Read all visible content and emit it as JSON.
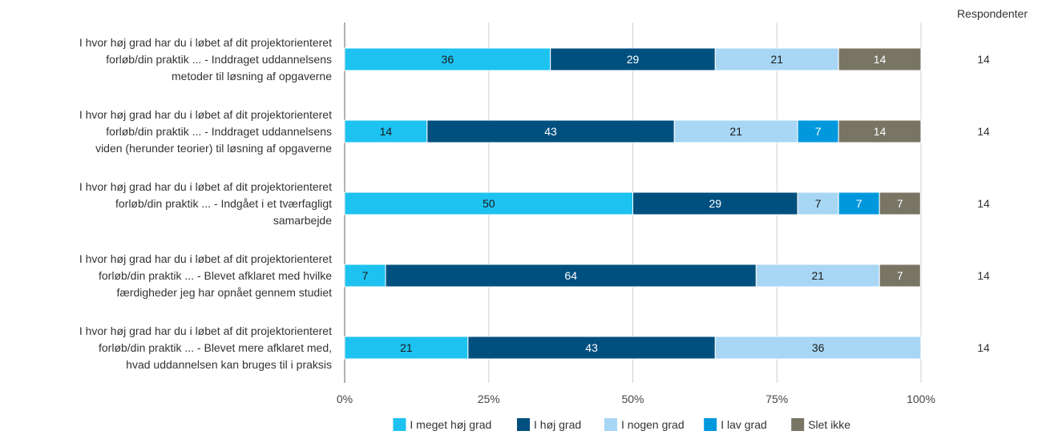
{
  "chart_data": {
    "type": "bar",
    "orientation": "horizontal",
    "stacked": true,
    "categories": [
      [
        "I hvor høj grad har du i løbet af dit projektorienteret",
        "forløb/din praktik ... - Inddraget uddannelsens",
        "metoder til løsning af opgaverne"
      ],
      [
        "I hvor høj grad har du i løbet af dit projektorienteret",
        "forløb/din praktik ... - Inddraget uddannelsens",
        "viden (herunder teorier) til løsning af opgaverne"
      ],
      [
        "I hvor høj grad har du i løbet af dit projektorienteret",
        "forløb/din praktik ... - Indgået i et tværfagligt",
        "samarbejde"
      ],
      [
        "I hvor høj grad har du i løbet af dit projektorienteret",
        "forløb/din praktik ... - Blevet afklaret med hvilke",
        "færdigheder jeg har opnået gennem studiet"
      ],
      [
        "I hvor høj grad har du i løbet af dit projektorienteret",
        "forløb/din praktik ... - Blevet mere afklaret med,",
        "hvad uddannelsen kan bruges til i praksis"
      ]
    ],
    "series": [
      {
        "name": "I meget høj grad",
        "color": "#1ec2f0",
        "text_color": "#1a1a1a",
        "values": [
          35.7,
          14.3,
          50,
          7.1,
          21.4
        ],
        "labels": [
          "36",
          "14",
          "50",
          "7",
          "21"
        ]
      },
      {
        "name": "I høj grad",
        "color": "#00507f",
        "text_color": "#ffffff",
        "values": [
          28.6,
          42.9,
          28.6,
          64.3,
          42.9
        ],
        "labels": [
          "29",
          "43",
          "29",
          "64",
          "43"
        ]
      },
      {
        "name": "I nogen grad",
        "color": "#a8d6f5",
        "text_color": "#1a1a1a",
        "values": [
          21.4,
          21.4,
          7.1,
          21.4,
          35.7
        ],
        "labels": [
          "21",
          "21",
          "7",
          "21",
          "36"
        ]
      },
      {
        "name": "I lav grad",
        "color": "#0098dc",
        "text_color": "#ffffff",
        "values": [
          0,
          7.1,
          7.1,
          0,
          0
        ],
        "labels": [
          "",
          "7",
          "7",
          "",
          ""
        ]
      },
      {
        "name": "Slet ikke",
        "color": "#787565",
        "text_color": "#ffffff",
        "values": [
          14.3,
          14.3,
          7.1,
          7.1,
          0
        ],
        "labels": [
          "14",
          "14",
          "7",
          "7",
          ""
        ]
      }
    ],
    "xlim": [
      0,
      100
    ],
    "x_ticks": [
      "0%",
      "25%",
      "50%",
      "75%",
      "100%"
    ],
    "grid": true,
    "legend_position": "bottom",
    "respondents_header": "Respondenter",
    "respondents": [
      "14",
      "14",
      "14",
      "14",
      "14"
    ]
  }
}
